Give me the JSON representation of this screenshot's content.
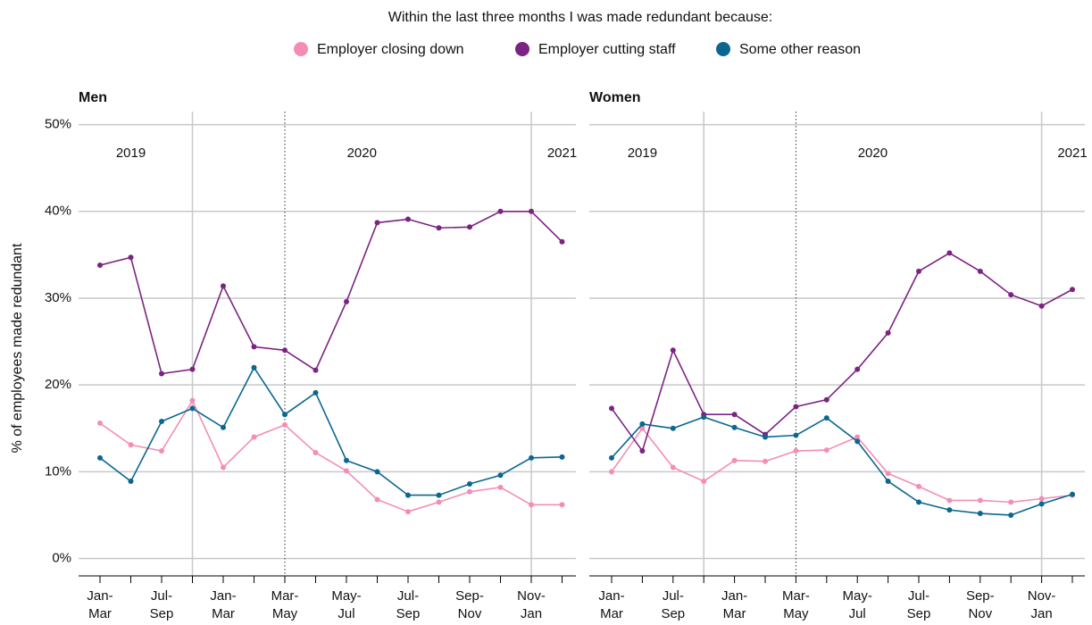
{
  "chart_data": [
    {
      "type": "line",
      "title": "Men",
      "legend_title": "Within the last three months I was made redundant because:",
      "y_label": "% of employees made redundant",
      "annotations": [
        "2019",
        "2020",
        "2021"
      ],
      "categories": [
        "Jan-Mar",
        null,
        "Jul-Sep",
        null,
        "Jan-Mar",
        null,
        "Mar-May",
        null,
        "May-Jul",
        null,
        "Jul-Sep",
        null,
        "Sep-Nov",
        null,
        "Nov-Jan",
        null
      ],
      "series": [
        {
          "name": "Employer closing down",
          "color": "#f48db6",
          "values": [
            15.6,
            13.1,
            12.4,
            18.2,
            10.5,
            14.0,
            15.4,
            12.2,
            10.1,
            6.8,
            5.4,
            6.5,
            7.7,
            8.2,
            6.2,
            6.2
          ]
        },
        {
          "name": "Employer cutting staff",
          "color": "#7b2382",
          "values": [
            33.8,
            34.7,
            21.3,
            21.8,
            31.4,
            24.4,
            24.0,
            21.7,
            29.6,
            38.7,
            39.1,
            38.1,
            38.2,
            40.0,
            40.0,
            36.5
          ]
        },
        {
          "name": "Some other reason",
          "color": "#0b6790",
          "values": [
            11.6,
            8.9,
            15.8,
            17.3,
            15.1,
            22.0,
            16.6,
            19.1,
            11.3,
            10.0,
            7.3,
            7.3,
            8.6,
            9.6,
            11.6,
            11.7
          ]
        }
      ],
      "ylim": [
        -2,
        51.5
      ],
      "yticks": [
        {
          "value": 0,
          "label": "0%"
        },
        {
          "value": 10,
          "label": "10%"
        },
        {
          "value": 20,
          "label": "20%"
        },
        {
          "value": 30,
          "label": "30%"
        },
        {
          "value": 40,
          "label": "40%"
        },
        {
          "value": 50,
          "label": "50%"
        }
      ],
      "grid": true
    },
    {
      "type": "line",
      "title": "Women",
      "annotations": [
        "2019",
        "2020",
        "2021"
      ],
      "categories": [
        "Jan-Mar",
        null,
        "Jul-Sep",
        null,
        "Jan-Mar",
        null,
        "Mar-May",
        null,
        "May-Jul",
        null,
        "Jul-Sep",
        null,
        "Sep-Nov",
        null,
        "Nov-Jan",
        null
      ],
      "series": [
        {
          "name": "Employer closing down",
          "color": "#f48db6",
          "values": [
            10.0,
            15.0,
            10.5,
            8.9,
            11.3,
            11.2,
            12.4,
            12.5,
            14.0,
            9.8,
            8.3,
            6.7,
            6.7,
            6.5,
            6.9,
            7.3
          ]
        },
        {
          "name": "Employer cutting staff",
          "color": "#7b2382",
          "values": [
            17.3,
            12.4,
            24.0,
            16.6,
            16.6,
            14.3,
            17.5,
            18.3,
            21.8,
            26.0,
            33.1,
            35.2,
            33.1,
            30.4,
            29.1,
            31.0
          ]
        },
        {
          "name": "Some other reason",
          "color": "#0b6790",
          "values": [
            11.6,
            15.5,
            15.0,
            16.3,
            15.1,
            14.0,
            14.2,
            16.2,
            13.5,
            8.9,
            6.5,
            5.6,
            5.2,
            5.0,
            6.3,
            7.4
          ]
        }
      ],
      "ylim": [
        -2,
        51.5
      ],
      "yticks": [
        0,
        10,
        20,
        30,
        40,
        50
      ],
      "grid": true
    }
  ]
}
